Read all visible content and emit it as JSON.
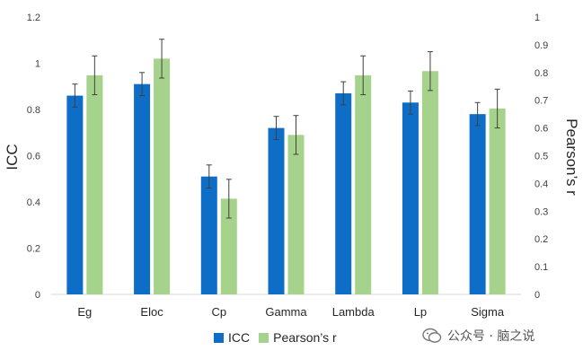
{
  "chart_data": {
    "type": "bar",
    "categories": [
      "Eg",
      "Eloc",
      "Cp",
      "Gamma",
      "Lambda",
      "Lp",
      "Sigma"
    ],
    "ylabel": "ICC",
    "y2label": "Pearson’s r",
    "ylim": [
      0,
      1.2
    ],
    "y2lim": [
      0,
      1
    ],
    "yticks": [
      "0",
      "0.2",
      "0.4",
      "0.6",
      "0.8",
      "1",
      "1.2"
    ],
    "y2ticks": [
      "0",
      "0.1",
      "0.2",
      "0.3",
      "0.4",
      "0.5",
      "0.6",
      "0.7",
      "0.8",
      "0.9",
      "1"
    ],
    "legend_position": "bottom",
    "grid": false,
    "series": [
      {
        "name": "ICC",
        "axis": "left",
        "color": "#0e6ec7",
        "values": [
          0.86,
          0.91,
          0.51,
          0.72,
          0.87,
          0.83,
          0.78
        ],
        "error": [
          0.05,
          0.05,
          0.05,
          0.05,
          0.05,
          0.05,
          0.05
        ]
      },
      {
        "name": "Pearson’s r",
        "axis": "right",
        "color": "#a6d38c",
        "values": [
          0.79,
          0.85,
          0.345,
          0.575,
          0.79,
          0.805,
          0.67
        ],
        "error": [
          0.07,
          0.07,
          0.07,
          0.07,
          0.07,
          0.07,
          0.07
        ]
      }
    ]
  },
  "watermark": {
    "text": "公众号 · 脑之说",
    "icon": "wechat-icon"
  }
}
